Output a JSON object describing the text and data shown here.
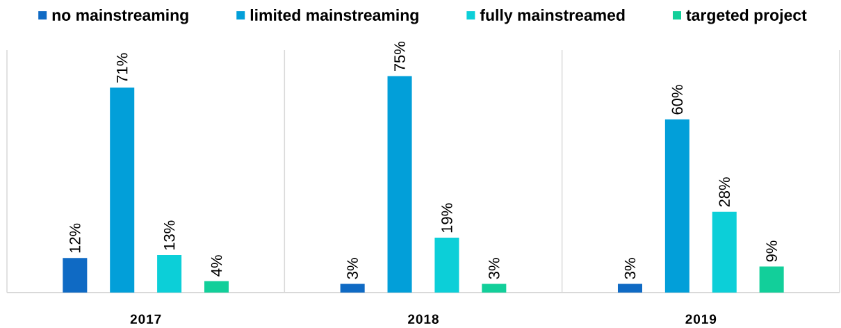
{
  "chart_data": {
    "type": "bar",
    "categories": [
      "2017",
      "2018",
      "2019"
    ],
    "series": [
      {
        "name": "no mainstreaming",
        "color": "#0f6ac4",
        "values": [
          12,
          3,
          3
        ],
        "value_labels": [
          "12%",
          "3%",
          "3%"
        ]
      },
      {
        "name": "limited mainstreaming",
        "color": "#029fd9",
        "values": [
          71,
          75,
          60
        ],
        "value_labels": [
          "71%",
          "75%",
          "60%"
        ]
      },
      {
        "name": "fully mainstreamed",
        "color": "#0ccfd8",
        "values": [
          13,
          19,
          28
        ],
        "value_labels": [
          "13%",
          "19%",
          "28%"
        ]
      },
      {
        "name": "targeted project",
        "color": "#12cf9a",
        "values": [
          4,
          3,
          9
        ],
        "value_labels": [
          "4%",
          "3%",
          "9%"
        ]
      }
    ],
    "grid": "x",
    "legend": "top"
  }
}
